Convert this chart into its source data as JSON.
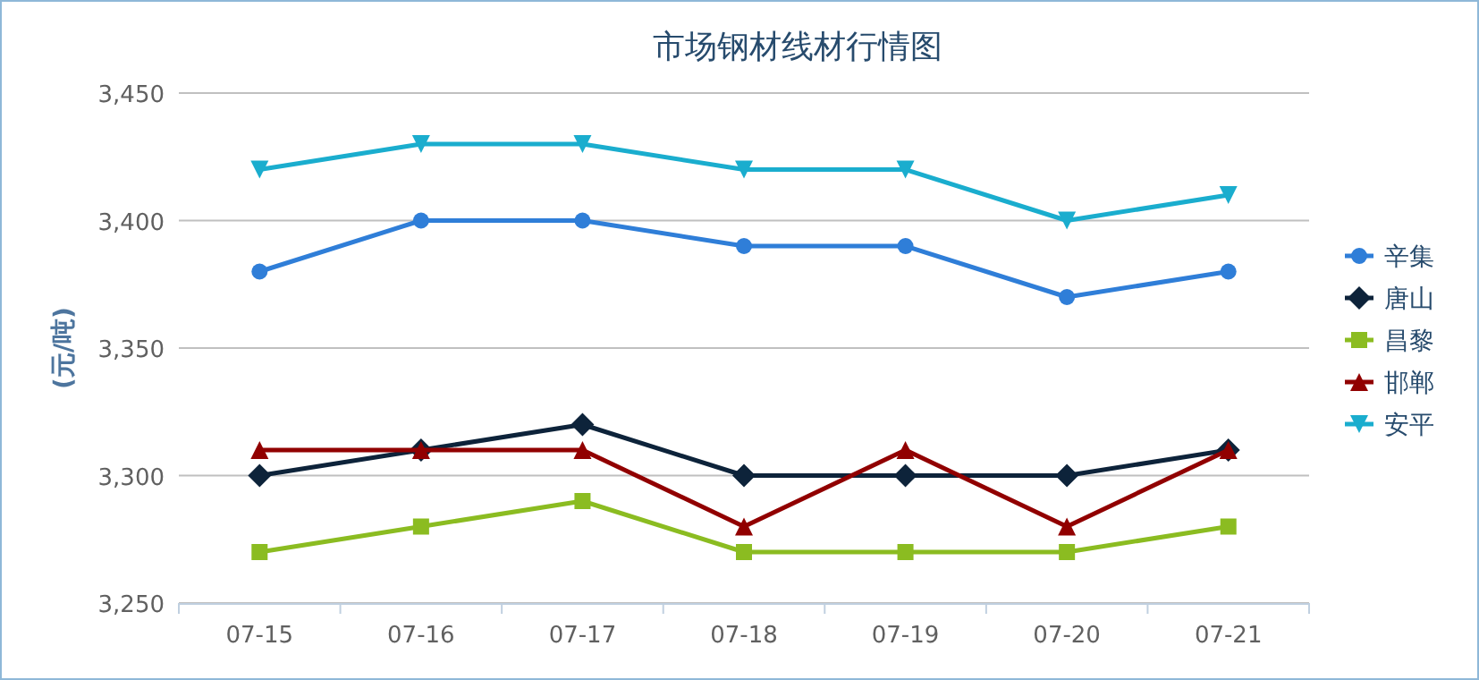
{
  "chart_data": {
    "type": "line",
    "title": "市场钢材线材行情图",
    "ylabel": "(元/吨)",
    "categories": [
      "07-15",
      "07-16",
      "07-17",
      "07-18",
      "07-19",
      "07-20",
      "07-21"
    ],
    "series": [
      {
        "name": "辛集",
        "color": "#2f7ed8",
        "marker": "circle",
        "values": [
          3380,
          3400,
          3400,
          3390,
          3390,
          3370,
          3380
        ]
      },
      {
        "name": "唐山",
        "color": "#0d233a",
        "marker": "diamond",
        "values": [
          3300,
          3310,
          3320,
          3300,
          3300,
          3300,
          3310
        ]
      },
      {
        "name": "昌黎",
        "color": "#8bbc21",
        "marker": "square",
        "values": [
          3270,
          3280,
          3290,
          3270,
          3270,
          3270,
          3280
        ]
      },
      {
        "name": "邯郸",
        "color": "#910000",
        "marker": "triangle",
        "values": [
          3310,
          3310,
          3310,
          3280,
          3310,
          3280,
          3310
        ]
      },
      {
        "name": "安平",
        "color": "#1aadce",
        "marker": "triangle-down",
        "values": [
          3420,
          3430,
          3430,
          3420,
          3420,
          3400,
          3410
        ]
      }
    ],
    "ylim": [
      3250,
      3450
    ],
    "yticks": [
      {
        "value": 3250,
        "label": "3,250"
      },
      {
        "value": 3300,
        "label": "3,300"
      },
      {
        "value": 3350,
        "label": "3,350"
      },
      {
        "value": 3400,
        "label": "3,400"
      },
      {
        "value": 3450,
        "label": "3,450"
      }
    ],
    "grid": "y",
    "legend": "right",
    "line_style": "solid"
  }
}
